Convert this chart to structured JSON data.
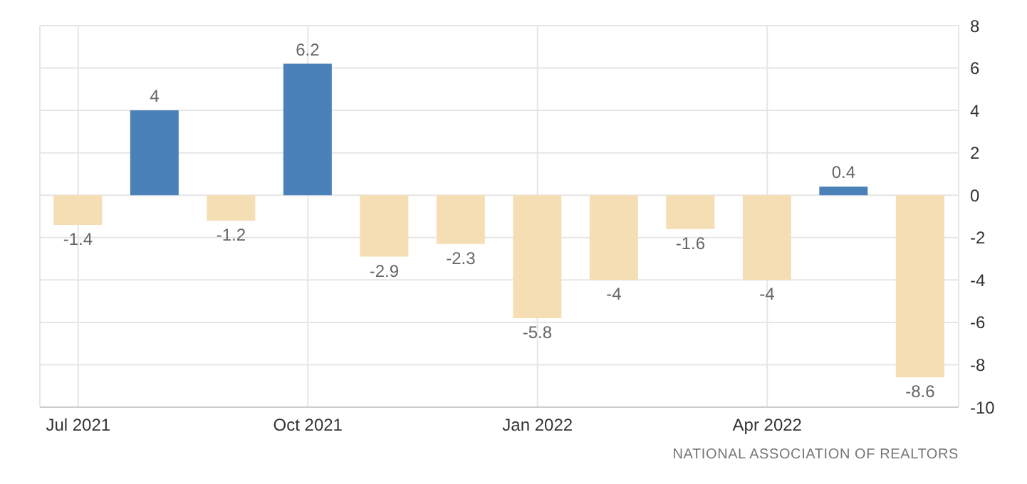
{
  "chart_data": {
    "type": "bar",
    "categories": [
      "Jul 2021",
      null,
      null,
      "Oct 2021",
      null,
      null,
      "Jan 2022",
      null,
      null,
      "Apr 2022",
      null,
      null
    ],
    "values": [
      -1.4,
      4,
      -1.2,
      6.2,
      -2.9,
      -2.3,
      -5.8,
      -4,
      -1.6,
      -4,
      0.4,
      -8.6
    ],
    "colors": [
      "#f5deb3",
      "#4a81b8",
      "#f5deb3",
      "#4a81b8",
      "#f5deb3",
      "#f5deb3",
      "#f5deb3",
      "#f5deb3",
      "#f5deb3",
      "#f5deb3",
      "#4a81b8",
      "#f5deb3"
    ],
    "ylim": [
      -10,
      8
    ],
    "yticks": [
      -10,
      -8,
      -6,
      -4,
      -2,
      0,
      2,
      4,
      6,
      8
    ],
    "grid": true,
    "data_labels": true,
    "annotations": [
      "NATIONAL ASSOCIATION OF REALTORS"
    ]
  }
}
